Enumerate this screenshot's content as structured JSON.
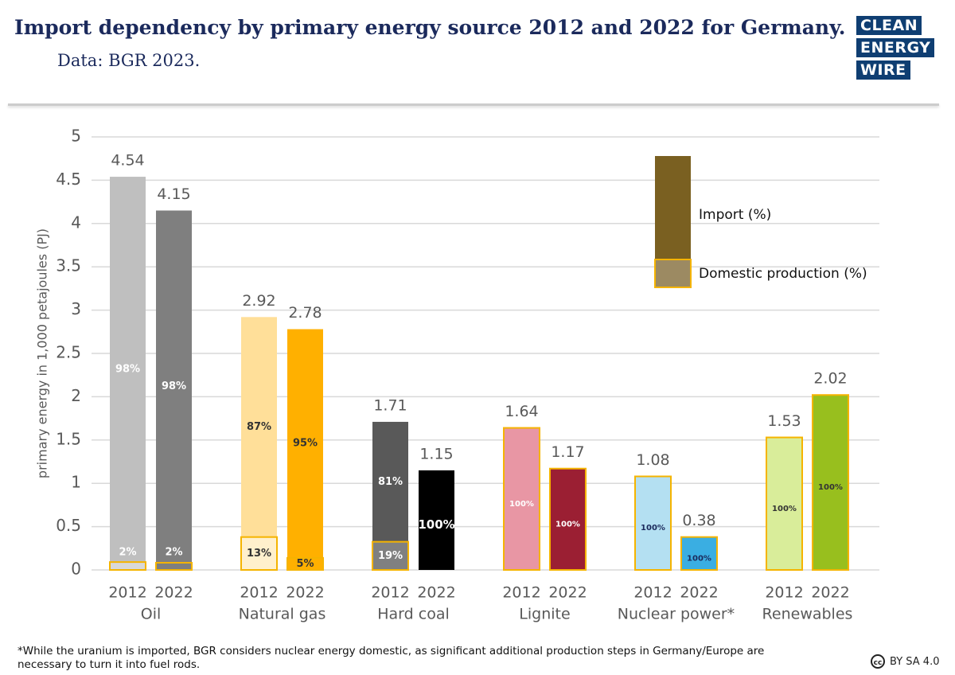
{
  "chart_data": {
    "type": "bar",
    "title": "Import dependency by primary energy source 2012 and 2022 for Germany.",
    "subtitle": "Data: BGR 2023.",
    "y_label": "primary energy in 1,000 petajoules (PJ)",
    "ylim": [
      0,
      5
    ],
    "yticks": [
      0,
      0.5,
      1,
      1.5,
      2,
      2.5,
      3,
      3.5,
      4,
      4.5,
      5
    ],
    "grid": true,
    "legend": [
      {
        "name": "Import (%)",
        "color": "#7a6021"
      },
      {
        "name": "Domestic production (%)",
        "color": "#9c8a62",
        "border": "#f5b400"
      }
    ],
    "groups": [
      {
        "name": "Oil",
        "bars": [
          {
            "year": "2012",
            "value": 4.54,
            "color": "#bfbfbf",
            "domestic_color": "#d9d9d9",
            "text_color": "#ffffff",
            "import": {
              "value": 98,
              "label": "98%"
            },
            "domestic": {
              "value": 2,
              "label": "2%"
            }
          },
          {
            "year": "2022",
            "value": 4.15,
            "color": "#7f7f7f",
            "domestic_color": "#7f7f7f",
            "text_color": "#ffffff",
            "import": {
              "value": 98,
              "label": "98%"
            },
            "domestic": {
              "value": 2,
              "label": "2%"
            }
          }
        ]
      },
      {
        "name": "Natural gas",
        "bars": [
          {
            "year": "2012",
            "value": 2.92,
            "color": "#ffdf99",
            "domestic_color": "#fff0cc",
            "text_color": "#333333",
            "import": {
              "value": 87,
              "label": "87%"
            },
            "domestic": {
              "value": 13,
              "label": "13%"
            }
          },
          {
            "year": "2022",
            "value": 2.78,
            "color": "#ffb000",
            "domestic_color": "#ffb000",
            "text_color": "#333333",
            "import": {
              "value": 95,
              "label": "95%"
            },
            "domestic": {
              "value": 5,
              "label": "5%"
            }
          }
        ]
      },
      {
        "name": "Hard coal",
        "bars": [
          {
            "year": "2012",
            "value": 1.71,
            "color": "#595959",
            "domestic_color": "#808080",
            "text_color": "#ffffff",
            "import": {
              "value": 81,
              "label": "81%"
            },
            "domestic": {
              "value": 19,
              "label": "19%"
            }
          },
          {
            "year": "2022",
            "value": 1.15,
            "color": "#000000",
            "domestic_color": "#000000",
            "text_color": "#ffffff",
            "import": {
              "value": 100,
              "label": "100%"
            }
          }
        ]
      },
      {
        "name": "Lignite",
        "bars": [
          {
            "year": "2012",
            "value": 1.64,
            "color": "#e896a4",
            "domestic_color": "#e896a4",
            "text_color": "#ffffff",
            "domestic": {
              "value": 100,
              "label": "100%"
            }
          },
          {
            "year": "2022",
            "value": 1.17,
            "color": "#9b1f33",
            "domestic_color": "#9b1f33",
            "text_color": "#ffffff",
            "domestic": {
              "value": 100,
              "label": "100%"
            }
          }
        ]
      },
      {
        "name": "Nuclear power*",
        "bars": [
          {
            "year": "2012",
            "value": 1.08,
            "color": "#b4e0f2",
            "domestic_color": "#b4e0f2",
            "text_color": "#1b2a5c",
            "domestic": {
              "value": 100,
              "label": "100%"
            }
          },
          {
            "year": "2022",
            "value": 0.38,
            "color": "#3aaee2",
            "domestic_color": "#3aaee2",
            "text_color": "#1b2a5c",
            "domestic": {
              "value": 100,
              "label": "100%"
            }
          }
        ]
      },
      {
        "name": "Renewables",
        "bars": [
          {
            "year": "2012",
            "value": 1.53,
            "color": "#d9ed9a",
            "domestic_color": "#d9ed9a",
            "text_color": "#333333",
            "domestic": {
              "value": 100,
              "label": "100%"
            }
          },
          {
            "year": "2022",
            "value": 2.02,
            "color": "#98bf1e",
            "domestic_color": "#98bf1e",
            "text_color": "#333333",
            "domestic": {
              "value": 100,
              "label": "100%"
            }
          }
        ]
      }
    ],
    "domestic_border": "#f5b400",
    "footnote": "*While the uranium is imported, BGR considers nuclear energy domestic, as significant additional production steps in Germany/Europe are necessary to turn it into fuel rods.",
    "license": "BY SA 4.0",
    "logo": [
      "CLEAN",
      "ENERGY",
      "WIRE"
    ]
  }
}
